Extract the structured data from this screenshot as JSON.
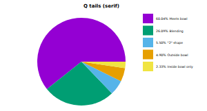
{
  "chart_data": {
    "type": "pie",
    "title": "Q tails (serif)",
    "categories": [
      "Meets bowl",
      "Blending",
      "\"2\" shape",
      "Outside bowl",
      "Inside bowl only"
    ],
    "values": [
      60.04,
      26.09,
      5.5,
      4.9,
      2.33
    ],
    "value_labels": [
      "60.04%",
      "26.09%",
      "5.50%",
      "4.90%",
      "2.33%"
    ],
    "colors": [
      "#9400d3",
      "#009e73",
      "#56b4e9",
      "#e69f00",
      "#f0e442"
    ],
    "legend": "right"
  }
}
